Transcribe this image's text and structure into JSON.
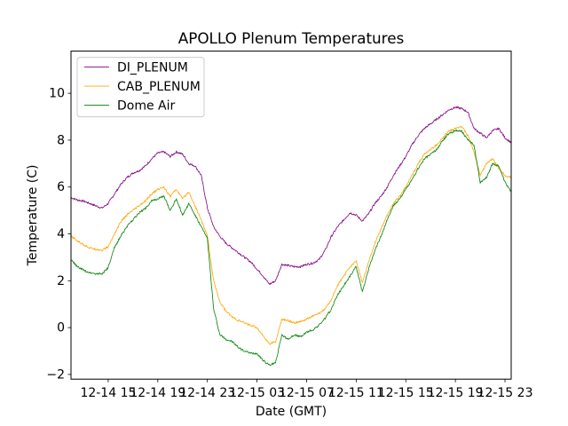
{
  "chart_data": {
    "type": "line",
    "title": "APOLLO Plenum Temperatures",
    "xlabel": "Date (GMT)",
    "ylabel": "Temperature (C)",
    "x_unit": "hours since 2014-12-14 12:00 GMT",
    "xlim": [
      0,
      35.5
    ],
    "ylim": [
      -2.2,
      11.8
    ],
    "yticks": [
      -2,
      0,
      2,
      4,
      6,
      8,
      10
    ],
    "xticks": [
      {
        "x": 3,
        "label": "12-14 15"
      },
      {
        "x": 7,
        "label": "12-14 19"
      },
      {
        "x": 11,
        "label": "12-14 23"
      },
      {
        "x": 15,
        "label": "12-15 03"
      },
      {
        "x": 19,
        "label": "12-15 07"
      },
      {
        "x": 23,
        "label": "12-15 11"
      },
      {
        "x": 27,
        "label": "12-15 15"
      },
      {
        "x": 31,
        "label": "12-15 19"
      },
      {
        "x": 35,
        "label": "12-15 23"
      }
    ],
    "grid": false,
    "legend_position": "upper-left",
    "series": [
      {
        "name": "DI_PLENUM",
        "color": "#800080",
        "x": [
          0,
          0.5,
          1,
          1.5,
          2,
          2.5,
          3,
          3.5,
          4,
          4.5,
          5,
          5.5,
          6,
          6.5,
          7,
          7.5,
          8,
          8.5,
          9,
          9.5,
          10,
          10.5,
          11,
          11.5,
          12,
          12.5,
          13,
          13.5,
          14,
          14.5,
          15,
          15.5,
          16,
          16.5,
          17,
          17.5,
          18,
          18.5,
          19,
          19.5,
          20,
          20.5,
          21,
          21.5,
          22,
          22.5,
          23,
          23.5,
          24,
          24.5,
          25,
          25.5,
          26,
          26.5,
          27,
          27.5,
          28,
          28.5,
          29,
          29.5,
          30,
          30.5,
          31,
          31.5,
          32,
          32.5,
          33,
          33.5,
          34,
          34.5,
          35,
          35.5
        ],
        "values": [
          5.55,
          5.45,
          5.4,
          5.3,
          5.2,
          5.1,
          5.3,
          5.7,
          6.1,
          6.4,
          6.6,
          6.7,
          6.9,
          7.2,
          7.45,
          7.5,
          7.3,
          7.5,
          7.4,
          7.0,
          6.9,
          6.5,
          5.1,
          4.3,
          3.9,
          3.6,
          3.4,
          3.2,
          3.0,
          2.8,
          2.5,
          2.2,
          1.85,
          2.0,
          2.7,
          2.65,
          2.6,
          2.6,
          2.7,
          2.75,
          2.9,
          3.3,
          3.9,
          4.3,
          4.6,
          4.9,
          4.8,
          4.55,
          4.85,
          5.3,
          5.6,
          6.0,
          6.5,
          6.9,
          7.3,
          7.8,
          8.2,
          8.5,
          8.7,
          8.9,
          9.1,
          9.3,
          9.4,
          9.35,
          9.2,
          8.5,
          8.3,
          8.1,
          8.4,
          8.5,
          8.1,
          7.9
        ]
      },
      {
        "name": "CAB_PLENUM",
        "color": "#ffa500",
        "x": [
          0,
          0.5,
          1,
          1.5,
          2,
          2.5,
          3,
          3.5,
          4,
          4.5,
          5,
          5.5,
          6,
          6.5,
          7,
          7.5,
          8,
          8.5,
          9,
          9.5,
          10,
          10.5,
          11,
          11.5,
          12,
          12.5,
          13,
          13.5,
          14,
          14.5,
          15,
          15.5,
          16,
          16.5,
          17,
          17.5,
          18,
          18.5,
          19,
          19.5,
          20,
          20.5,
          21,
          21.5,
          22,
          22.5,
          23,
          23.5,
          24,
          24.5,
          25,
          25.5,
          26,
          26.5,
          27,
          27.5,
          28,
          28.5,
          29,
          29.5,
          30,
          30.5,
          31,
          31.5,
          32,
          32.5,
          33,
          33.5,
          34,
          34.5,
          35,
          35.5
        ],
        "values": [
          3.9,
          3.7,
          3.55,
          3.4,
          3.35,
          3.3,
          3.45,
          4.0,
          4.5,
          4.8,
          5.0,
          5.2,
          5.4,
          5.7,
          5.9,
          6.0,
          5.6,
          5.9,
          5.5,
          5.8,
          5.2,
          4.6,
          3.9,
          2.0,
          1.1,
          0.7,
          0.45,
          0.3,
          0.2,
          0.1,
          0.0,
          -0.35,
          -0.7,
          -0.6,
          0.35,
          0.3,
          0.2,
          0.25,
          0.35,
          0.5,
          0.6,
          0.8,
          1.2,
          1.8,
          2.2,
          2.6,
          2.85,
          1.9,
          2.8,
          3.6,
          4.2,
          4.8,
          5.3,
          5.6,
          6.0,
          6.5,
          7.0,
          7.4,
          7.6,
          7.8,
          8.1,
          8.4,
          8.5,
          8.6,
          8.2,
          7.5,
          6.5,
          7.0,
          7.2,
          6.8,
          6.5,
          6.4
        ]
      },
      {
        "name": "Dome Air",
        "color": "#008000",
        "x": [
          0,
          0.5,
          1,
          1.5,
          2,
          2.5,
          3,
          3.5,
          4,
          4.5,
          5,
          5.5,
          6,
          6.5,
          7,
          7.5,
          8,
          8.5,
          9,
          9.5,
          10,
          10.5,
          11,
          11.5,
          12,
          12.5,
          13,
          13.5,
          14,
          14.5,
          15,
          15.5,
          16,
          16.5,
          17,
          17.5,
          18,
          18.5,
          19,
          19.5,
          20,
          20.5,
          21,
          21.5,
          22,
          22.5,
          23,
          23.5,
          24,
          24.5,
          25,
          25.5,
          26,
          26.5,
          27,
          27.5,
          28,
          28.5,
          29,
          29.5,
          30,
          30.5,
          31,
          31.5,
          32,
          32.5,
          33,
          33.5,
          34,
          34.5,
          35,
          35.5
        ],
        "values": [
          2.9,
          2.6,
          2.45,
          2.35,
          2.3,
          2.3,
          2.55,
          3.4,
          3.9,
          4.3,
          4.6,
          4.9,
          5.1,
          5.4,
          5.5,
          5.6,
          5.0,
          5.5,
          4.8,
          5.3,
          4.8,
          4.3,
          3.8,
          0.8,
          -0.3,
          -0.5,
          -0.6,
          -0.85,
          -1.0,
          -1.1,
          -1.1,
          -1.4,
          -1.6,
          -1.5,
          -0.3,
          -0.5,
          -0.3,
          -0.4,
          -0.2,
          -0.1,
          0.1,
          0.4,
          0.8,
          1.4,
          1.8,
          2.2,
          2.6,
          1.5,
          2.5,
          3.3,
          3.9,
          4.6,
          5.2,
          5.5,
          5.9,
          6.3,
          6.8,
          7.2,
          7.4,
          7.6,
          8.0,
          8.3,
          8.4,
          8.4,
          8.0,
          7.8,
          6.2,
          6.4,
          7.0,
          6.9,
          6.2,
          5.8
        ]
      }
    ]
  }
}
